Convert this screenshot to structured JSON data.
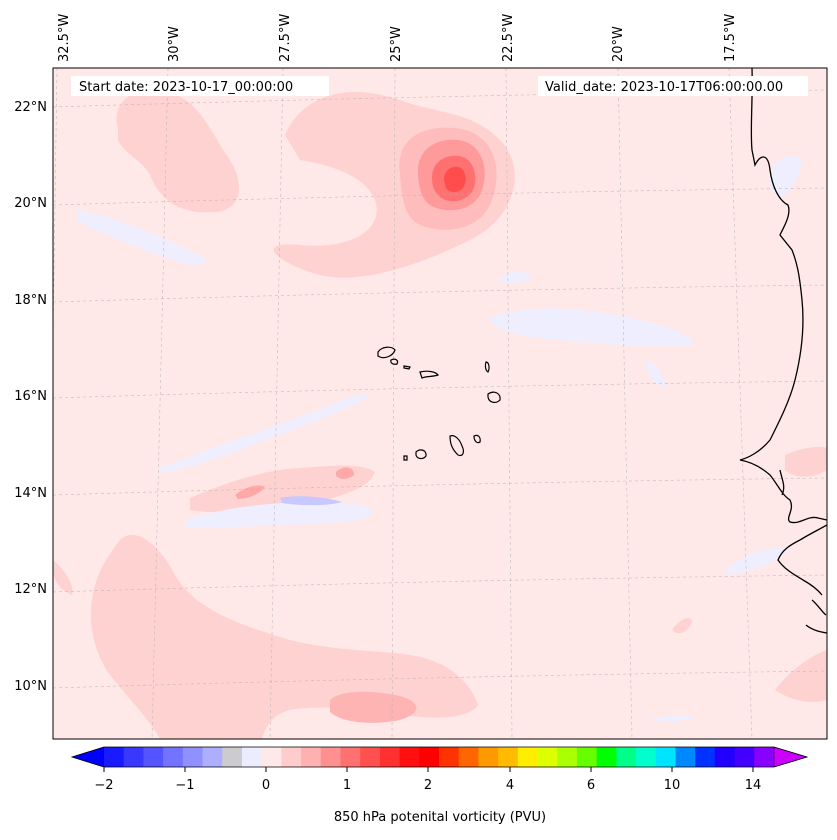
{
  "header": {
    "start_label": "Start date: 2023-10-17_00:00:00",
    "valid_label": "Valid_date: 2023-10-17T06:00:00.00"
  },
  "map": {
    "longitude_labels": [
      "32.5°W",
      "30°W",
      "27.5°W",
      "25°W",
      "22.5°W",
      "20°W",
      "17.5°W"
    ],
    "latitude_labels": [
      "22°N",
      "20°N",
      "18°N",
      "16°N",
      "14°N",
      "12°N",
      "10°N"
    ],
    "background_color": "#ffe8e8"
  },
  "colorbar": {
    "title": "850 hPa potenital vorticity (PVU)",
    "tick_labels": [
      "−2",
      "−1",
      "0",
      "1",
      "2",
      "4",
      "6",
      "10",
      "14"
    ],
    "under_color": "#0000ff",
    "over_color": "#cc00ff",
    "colors": [
      "#1a1aff",
      "#3838ff",
      "#5555ff",
      "#7373ff",
      "#9090ff",
      "#aeaeff",
      "#cccccf",
      "#ececff",
      "#ffe8e8",
      "#ffcccc",
      "#ffb0b0",
      "#ff9090",
      "#ff7070",
      "#ff5050",
      "#ff3030",
      "#ff1010",
      "#ff0000",
      "#ff3300",
      "#ff6600",
      "#ff9900",
      "#ffbb00",
      "#ffee00",
      "#ddff00",
      "#aaff00",
      "#66ff00",
      "#00ff00",
      "#00ff88",
      "#00ffcc",
      "#00e5ff",
      "#0088ff",
      "#0033ff",
      "#2200ff",
      "#4400ff",
      "#8800ff"
    ]
  }
}
